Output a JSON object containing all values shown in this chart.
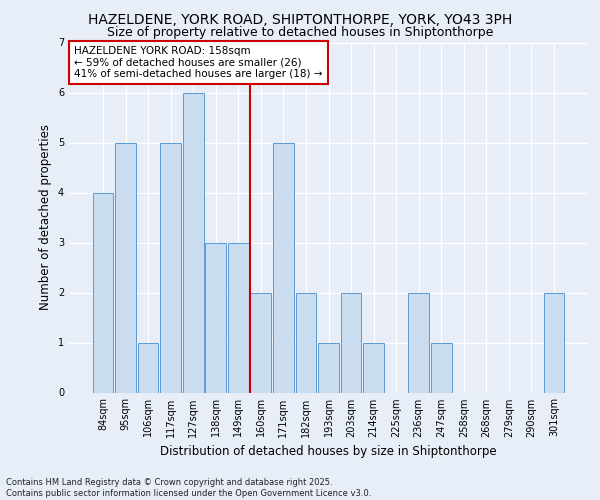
{
  "title": "HAZELDENE, YORK ROAD, SHIPTONTHORPE, YORK, YO43 3PH",
  "subtitle": "Size of property relative to detached houses in Shiptonthorpe",
  "xlabel": "Distribution of detached houses by size in Shiptonthorpe",
  "ylabel": "Number of detached properties",
  "categories": [
    "84sqm",
    "95sqm",
    "106sqm",
    "117sqm",
    "127sqm",
    "138sqm",
    "149sqm",
    "160sqm",
    "171sqm",
    "182sqm",
    "193sqm",
    "203sqm",
    "214sqm",
    "225sqm",
    "236sqm",
    "247sqm",
    "258sqm",
    "268sqm",
    "279sqm",
    "290sqm",
    "301sqm"
  ],
  "values": [
    4,
    5,
    1,
    5,
    6,
    3,
    3,
    2,
    5,
    2,
    1,
    2,
    1,
    0,
    2,
    1,
    0,
    0,
    0,
    0,
    2
  ],
  "bar_color": "#c9dcf0",
  "bar_edge_color": "#5b9bd5",
  "vline_color": "#cc0000",
  "annotation_text": "HAZELDENE YORK ROAD: 158sqm\n← 59% of detached houses are smaller (26)\n41% of semi-detached houses are larger (18) →",
  "annotation_box_color": "white",
  "annotation_edge_color": "#cc0000",
  "ylim": [
    0,
    7
  ],
  "yticks": [
    0,
    1,
    2,
    3,
    4,
    5,
    6,
    7
  ],
  "background_color": "#e8eef8",
  "grid_color": "white",
  "footer": "Contains HM Land Registry data © Crown copyright and database right 2025.\nContains public sector information licensed under the Open Government Licence v3.0.",
  "title_fontsize": 10,
  "subtitle_fontsize": 9,
  "xlabel_fontsize": 8.5,
  "ylabel_fontsize": 8.5,
  "tick_fontsize": 7,
  "annotation_fontsize": 7.5,
  "footer_fontsize": 6
}
